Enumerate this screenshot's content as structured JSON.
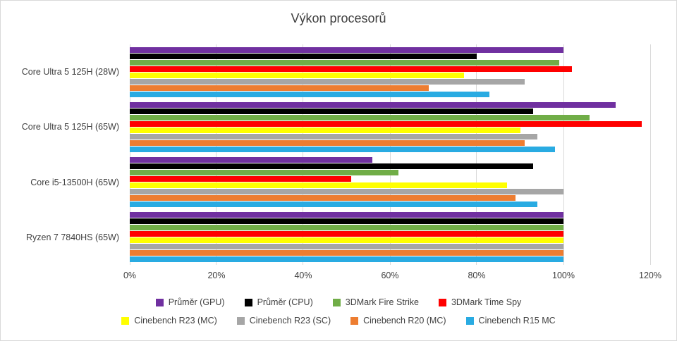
{
  "title": "Výkon procesorů",
  "chart_data": {
    "type": "bar",
    "orientation": "horizontal",
    "title": "Výkon procesorů",
    "xlabel": "",
    "ylabel": "",
    "xlim": [
      0,
      120
    ],
    "ticks": [
      0,
      20,
      40,
      60,
      80,
      100,
      120
    ],
    "tick_labels": [
      "0%",
      "20%",
      "40%",
      "60%",
      "80%",
      "100%",
      "120%"
    ],
    "grid": "vertical",
    "legend_position": "bottom",
    "categories": [
      "Core Ultra 5 125H (28W)",
      "Core Ultra 5 125H (65W)",
      "Core i5-13500H (65W)",
      "Ryzen 7 7840HS (65W)"
    ],
    "series": [
      {
        "name": "Průměr (GPU)",
        "color": "#7030A0",
        "values": [
          100,
          112,
          56,
          100
        ]
      },
      {
        "name": "Průměr (CPU)",
        "color": "#000000",
        "values": [
          80,
          93,
          93,
          100
        ]
      },
      {
        "name": "3DMark Fire Strike",
        "color": "#70AD47",
        "values": [
          99,
          106,
          62,
          100
        ]
      },
      {
        "name": "3DMark Time Spy",
        "color": "#FF0000",
        "values": [
          102,
          118,
          51,
          100
        ]
      },
      {
        "name": "Cinebench R23 (MC)",
        "color": "#FFFF00",
        "values": [
          77,
          90,
          87,
          100
        ]
      },
      {
        "name": "Cinebench R23 (SC)",
        "color": "#A6A6A6",
        "values": [
          91,
          94,
          100,
          100
        ]
      },
      {
        "name": "Cinebench R20 (MC)",
        "color": "#ED7D31",
        "values": [
          69,
          91,
          89,
          100
        ]
      },
      {
        "name": "Cinebench R15 MC",
        "color": "#29ABE2",
        "values": [
          83,
          98,
          94,
          100
        ]
      }
    ],
    "legend_rows": [
      [
        0,
        1,
        2,
        3
      ],
      [
        4,
        5,
        6,
        7
      ]
    ]
  }
}
